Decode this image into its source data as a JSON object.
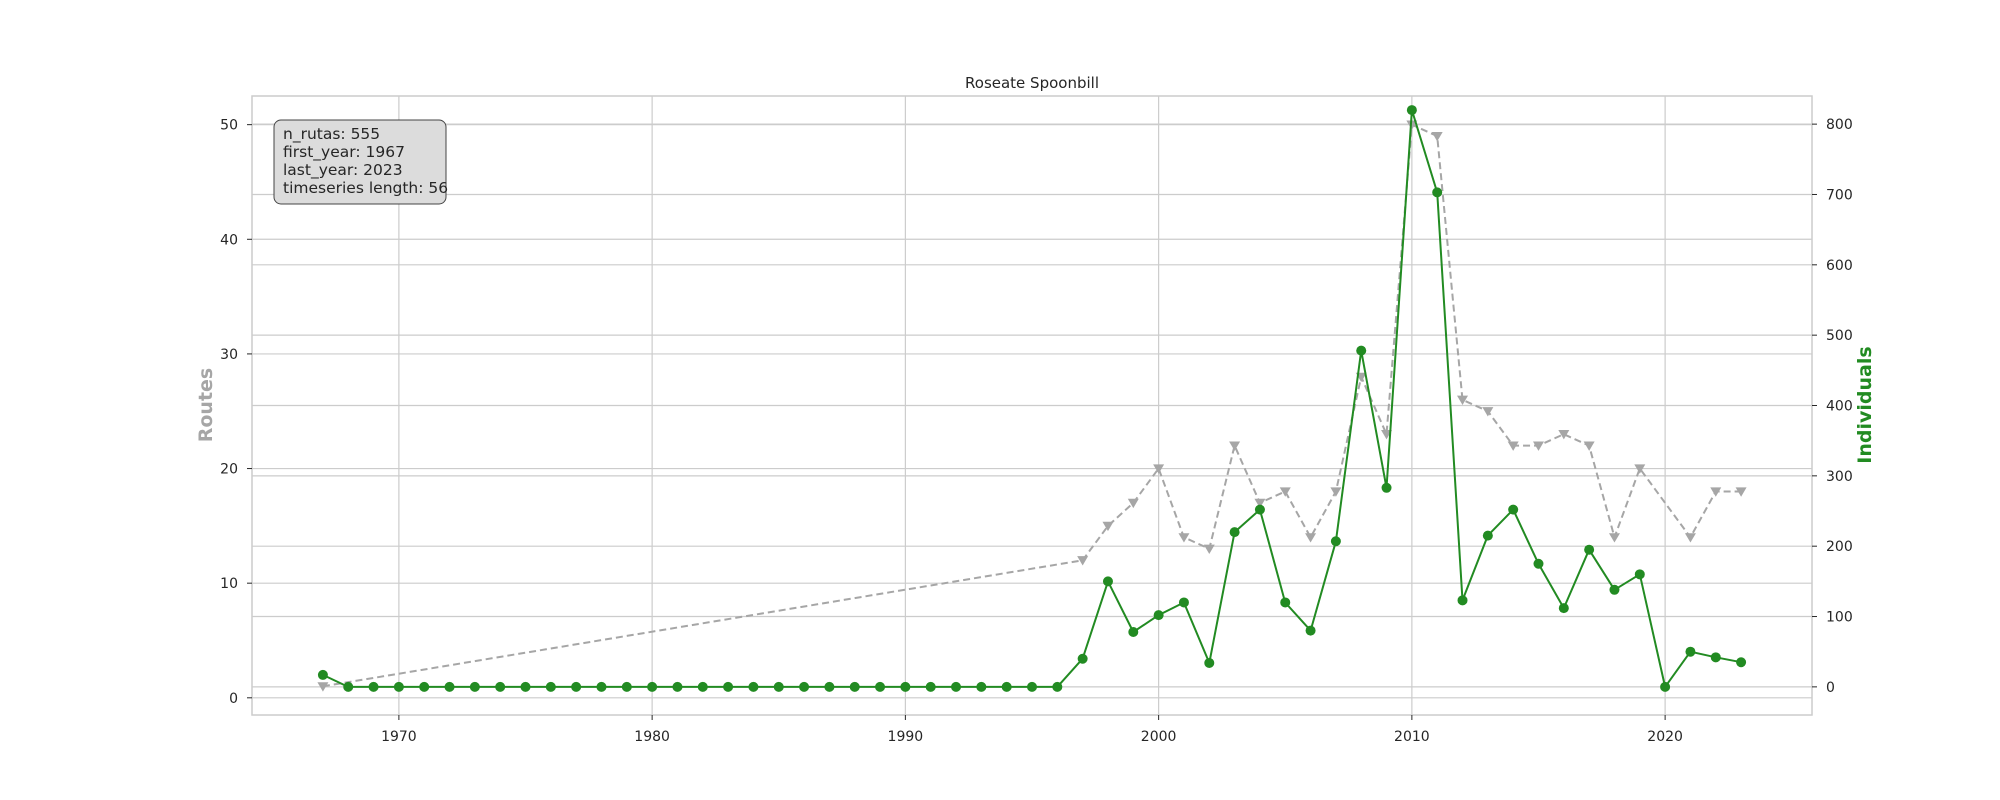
{
  "chart_data": {
    "type": "line",
    "title": "Roseate Spoonbill",
    "xlabel": "",
    "xlim": [
      1964.2,
      2025.8
    ],
    "x_ticks": [
      1970,
      1980,
      1990,
      2000,
      2010,
      2020
    ],
    "y_left": {
      "label": "Routes",
      "lim": [
        -1.5,
        52.5
      ],
      "ticks": [
        0,
        10,
        20,
        30,
        40,
        50
      ]
    },
    "y_right": {
      "label": "Individuals",
      "lim": [
        -40,
        840
      ],
      "ticks": [
        0,
        100,
        200,
        300,
        400,
        500,
        600,
        700,
        800
      ]
    },
    "grid": true,
    "info_box": {
      "position": "top-left",
      "lines": [
        "n_rutas: 555",
        "first_year: 1967",
        "last_year: 2023",
        "timeseries length: 56"
      ]
    },
    "series": [
      {
        "axis": "left",
        "color": "#a6a6a6",
        "style": "dashed",
        "marker": "triangle-down",
        "x": [
          1967,
          1997,
          1998,
          1999,
          2000,
          2001,
          2002,
          2003,
          2004,
          2005,
          2006,
          2007,
          2008,
          2009,
          2010,
          2011,
          2012,
          2013,
          2014,
          2015,
          2016,
          2017,
          2018,
          2019,
          2021,
          2022,
          2023
        ],
        "values": [
          1,
          12,
          15,
          17,
          20,
          14,
          13,
          22,
          17,
          18,
          14,
          18,
          28,
          23,
          50,
          49,
          26,
          25,
          22,
          22,
          23,
          22,
          14,
          20,
          14,
          18,
          18
        ]
      },
      {
        "axis": "right",
        "color": "#228b22",
        "style": "solid",
        "marker": "circle",
        "x": [
          1967,
          1968,
          1969,
          1970,
          1971,
          1972,
          1973,
          1974,
          1975,
          1976,
          1977,
          1978,
          1979,
          1980,
          1981,
          1982,
          1983,
          1984,
          1985,
          1986,
          1987,
          1988,
          1989,
          1990,
          1991,
          1992,
          1993,
          1994,
          1995,
          1996,
          1997,
          1998,
          1999,
          2000,
          2001,
          2002,
          2003,
          2004,
          2005,
          2006,
          2007,
          2008,
          2009,
          2010,
          2011,
          2012,
          2013,
          2014,
          2015,
          2016,
          2017,
          2018,
          2019,
          2020,
          2021,
          2022,
          2023
        ],
        "values": [
          17,
          0,
          0,
          0,
          0,
          0,
          0,
          0,
          0,
          0,
          0,
          0,
          0,
          0,
          0,
          0,
          0,
          0,
          0,
          0,
          0,
          0,
          0,
          0,
          0,
          0,
          0,
          0,
          0,
          0,
          40,
          150,
          78,
          102,
          120,
          34,
          220,
          252,
          120,
          80,
          207,
          478,
          283,
          820,
          703,
          123,
          215,
          252,
          175,
          112,
          195,
          138,
          160,
          0,
          50,
          42,
          35
        ]
      }
    ]
  }
}
